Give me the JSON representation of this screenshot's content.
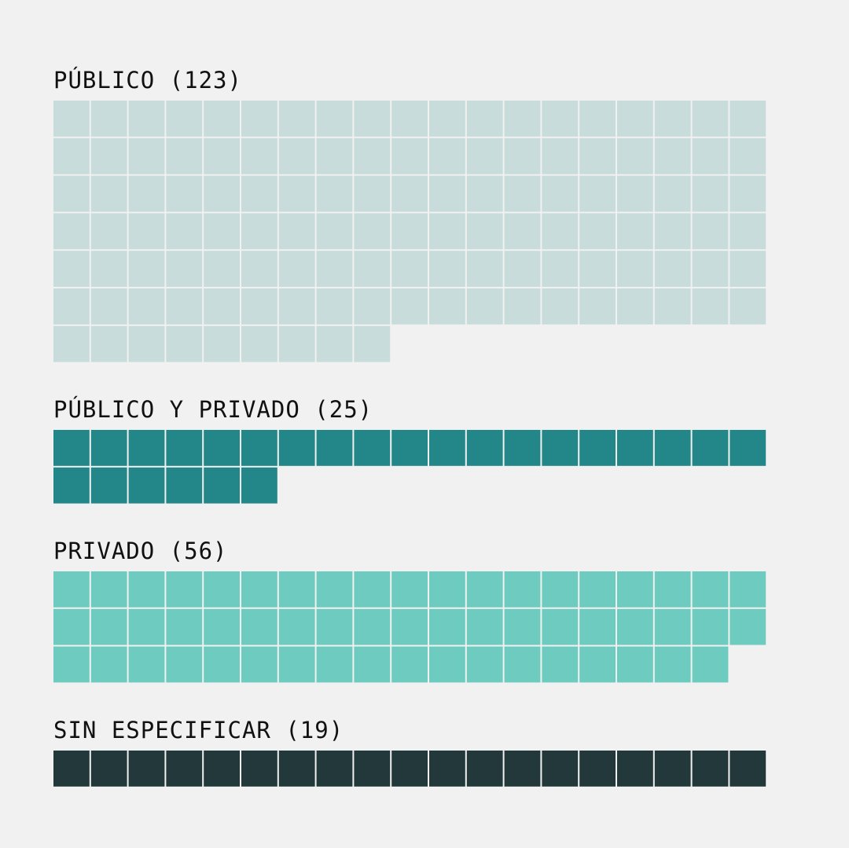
{
  "chart_data": {
    "type": "waffle",
    "units_per_row": 19,
    "groups": [
      {
        "label": "PÚBLICO (123)",
        "category": "PÚBLICO",
        "value": 123,
        "color": "#c8dcdb"
      },
      {
        "label": "PÚBLICO Y PRIVADO (25)",
        "category": "PÚBLICO Y PRIVADO",
        "value": 25,
        "color": "#238688"
      },
      {
        "label": "PRIVADO (56)",
        "category": "PRIVADO",
        "value": 56,
        "color": "#6ecbbf"
      },
      {
        "label": "SIN ESPECIFICAR (19)",
        "category": "SIN ESPECIFICAR",
        "value": 19,
        "color": "#22383a"
      }
    ]
  }
}
